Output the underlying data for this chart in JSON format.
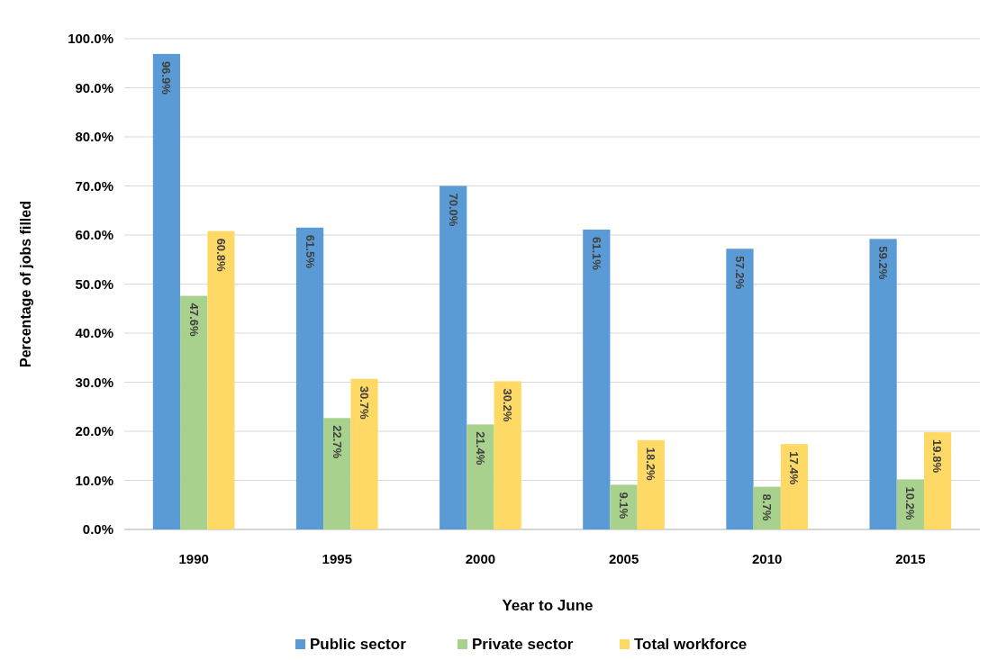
{
  "chart_data": {
    "type": "bar",
    "xlabel": "Year to June",
    "ylabel": "Percentage of jobs filled",
    "categories": [
      "1990",
      "1995",
      "2000",
      "2005",
      "2010",
      "2015"
    ],
    "series": [
      {
        "name": "Public sector",
        "color": "#5b9bd5",
        "values": [
          96.9,
          61.5,
          70.0,
          61.1,
          57.2,
          59.2
        ],
        "value_labels": [
          "96.9%",
          "61.5%",
          "70.0%",
          "61.1%",
          "57.2%",
          "59.2%"
        ]
      },
      {
        "name": "Private sector",
        "color": "#a9d18e",
        "values": [
          47.6,
          22.7,
          21.4,
          9.1,
          8.7,
          10.2
        ],
        "value_labels": [
          "47.6%",
          "22.7%",
          "21.4%",
          "9.1%",
          "8.7%",
          "10.2%"
        ]
      },
      {
        "name": "Total workforce",
        "color": "#ffd966",
        "values": [
          60.8,
          30.7,
          30.2,
          18.2,
          17.4,
          19.8
        ],
        "value_labels": [
          "60.8%",
          "30.7%",
          "30.2%",
          "18.2%",
          "17.4%",
          "19.8%"
        ]
      }
    ],
    "ylim": [
      0,
      100
    ],
    "yticks": [
      {
        "value": 0,
        "label": "0.0%"
      },
      {
        "value": 10,
        "label": "10.0%"
      },
      {
        "value": 20,
        "label": "20.0%"
      },
      {
        "value": 30,
        "label": "30.0%"
      },
      {
        "value": 40,
        "label": "40.0%"
      },
      {
        "value": 50,
        "label": "50.0%"
      },
      {
        "value": 60,
        "label": "60.0%"
      },
      {
        "value": 70,
        "label": "70.0%"
      },
      {
        "value": 80,
        "label": "80.0%"
      },
      {
        "value": 90,
        "label": "90.0%"
      },
      {
        "value": 100,
        "label": "100.0%"
      }
    ],
    "grid": "y",
    "legend": "bottom"
  }
}
